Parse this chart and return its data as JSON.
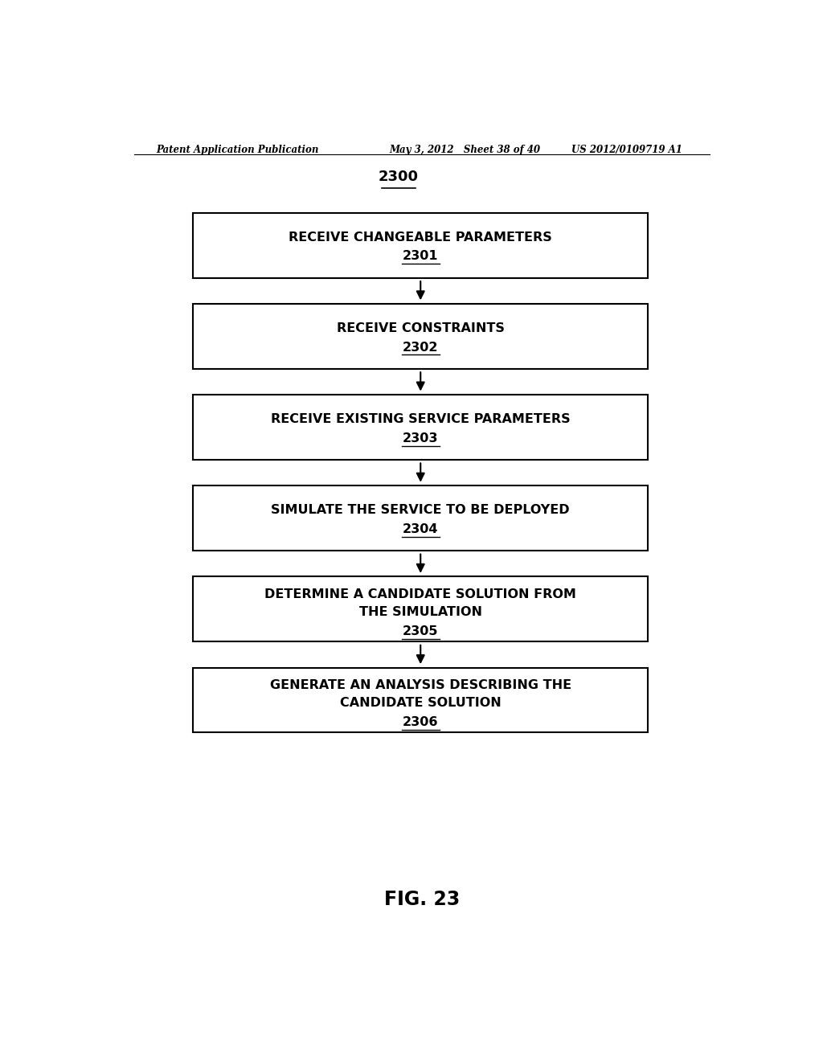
{
  "background_color": "#ffffff",
  "header_left": "Patent Application Publication",
  "header_center": "May 3, 2012   Sheet 38 of 40",
  "header_right": "US 2012/0109719 A1",
  "diagram_label": "2300",
  "footer_label": "FIG. 23",
  "boxes": [
    {
      "number": "2301",
      "lines": [
        "RECEIVE CHANGEABLE PARAMETERS"
      ]
    },
    {
      "number": "2302",
      "lines": [
        "RECEIVE CONSTRAINTS"
      ]
    },
    {
      "number": "2303",
      "lines": [
        "RECEIVE EXISTING SERVICE PARAMETERS"
      ]
    },
    {
      "number": "2304",
      "lines": [
        "SIMULATE THE SERVICE TO BE DEPLOYED"
      ]
    },
    {
      "number": "2305",
      "lines": [
        "DETERMINE A CANDIDATE SOLUTION FROM",
        "THE SIMULATION"
      ]
    },
    {
      "number": "2306",
      "lines": [
        "GENERATE AN ANALYSIS DESCRIBING THE",
        "CANDIDATE SOLUTION"
      ]
    }
  ],
  "box_color": "#ffffff",
  "box_edge_color": "#000000",
  "text_color": "#000000",
  "arrow_color": "#000000"
}
